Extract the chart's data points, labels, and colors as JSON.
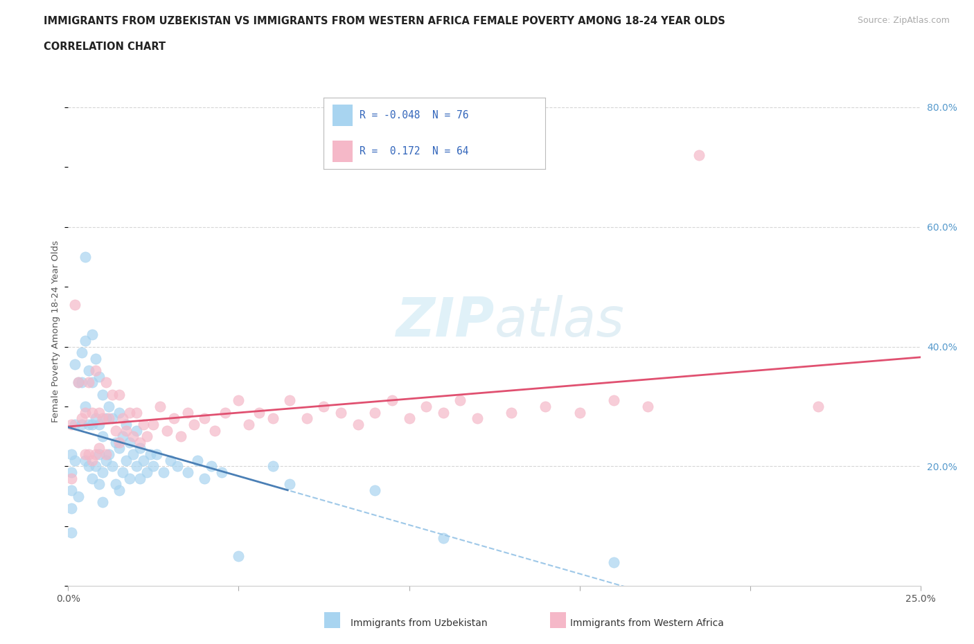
{
  "title_line1": "IMMIGRANTS FROM UZBEKISTAN VS IMMIGRANTS FROM WESTERN AFRICA FEMALE POVERTY AMONG 18-24 YEAR OLDS",
  "title_line2": "CORRELATION CHART",
  "source_text": "Source: ZipAtlas.com",
  "ylabel": "Female Poverty Among 18-24 Year Olds",
  "xlim": [
    0.0,
    0.25
  ],
  "ylim": [
    0.0,
    0.85
  ],
  "xticks": [
    0.0,
    0.05,
    0.1,
    0.15,
    0.2,
    0.25
  ],
  "xticklabels": [
    "0.0%",
    "",
    "",
    "",
    "",
    "25.0%"
  ],
  "yticks": [
    0.0,
    0.2,
    0.4,
    0.6,
    0.8
  ],
  "yticklabels": [
    "",
    "20.0%",
    "40.0%",
    "60.0%",
    "80.0%"
  ],
  "legend_R1": "-0.048",
  "legend_N1": "76",
  "legend_R2": "0.172",
  "legend_N2": "64",
  "color_uzbekistan": "#a8d4f0",
  "color_western_africa": "#f5b8c8",
  "trend_color_uzbekistan_solid": "#4a7fb5",
  "trend_color_uzbekistan_dash": "#9ec8e8",
  "trend_color_western_africa": "#e05070",
  "background_color": "#ffffff",
  "watermark_color": "#cce8f4",
  "uzbekistan_x": [
    0.001,
    0.001,
    0.001,
    0.001,
    0.001,
    0.002,
    0.002,
    0.002,
    0.003,
    0.003,
    0.004,
    0.004,
    0.004,
    0.005,
    0.005,
    0.005,
    0.005,
    0.006,
    0.006,
    0.006,
    0.007,
    0.007,
    0.007,
    0.007,
    0.008,
    0.008,
    0.008,
    0.009,
    0.009,
    0.009,
    0.009,
    0.01,
    0.01,
    0.01,
    0.01,
    0.011,
    0.011,
    0.012,
    0.012,
    0.013,
    0.013,
    0.014,
    0.014,
    0.015,
    0.015,
    0.015,
    0.016,
    0.016,
    0.017,
    0.017,
    0.018,
    0.018,
    0.019,
    0.02,
    0.02,
    0.021,
    0.021,
    0.022,
    0.023,
    0.024,
    0.025,
    0.026,
    0.028,
    0.03,
    0.032,
    0.035,
    0.038,
    0.04,
    0.042,
    0.045,
    0.05,
    0.06,
    0.065,
    0.09,
    0.11,
    0.16
  ],
  "uzbekistan_y": [
    0.22,
    0.19,
    0.16,
    0.13,
    0.09,
    0.37,
    0.27,
    0.21,
    0.34,
    0.15,
    0.39,
    0.34,
    0.27,
    0.55,
    0.41,
    0.3,
    0.21,
    0.36,
    0.27,
    0.2,
    0.42,
    0.34,
    0.27,
    0.18,
    0.38,
    0.28,
    0.2,
    0.35,
    0.27,
    0.22,
    0.17,
    0.32,
    0.25,
    0.19,
    0.14,
    0.28,
    0.21,
    0.3,
    0.22,
    0.28,
    0.2,
    0.24,
    0.17,
    0.29,
    0.23,
    0.16,
    0.25,
    0.19,
    0.27,
    0.21,
    0.24,
    0.18,
    0.22,
    0.26,
    0.2,
    0.23,
    0.18,
    0.21,
    0.19,
    0.22,
    0.2,
    0.22,
    0.19,
    0.21,
    0.2,
    0.19,
    0.21,
    0.18,
    0.2,
    0.19,
    0.05,
    0.2,
    0.17,
    0.16,
    0.08,
    0.04
  ],
  "western_africa_x": [
    0.001,
    0.001,
    0.002,
    0.003,
    0.004,
    0.005,
    0.005,
    0.006,
    0.006,
    0.007,
    0.007,
    0.008,
    0.008,
    0.009,
    0.009,
    0.01,
    0.011,
    0.011,
    0.012,
    0.013,
    0.014,
    0.015,
    0.015,
    0.016,
    0.017,
    0.018,
    0.019,
    0.02,
    0.021,
    0.022,
    0.023,
    0.025,
    0.027,
    0.029,
    0.031,
    0.033,
    0.035,
    0.037,
    0.04,
    0.043,
    0.046,
    0.05,
    0.053,
    0.056,
    0.06,
    0.065,
    0.07,
    0.075,
    0.08,
    0.085,
    0.09,
    0.095,
    0.1,
    0.105,
    0.11,
    0.115,
    0.12,
    0.13,
    0.14,
    0.15,
    0.16,
    0.17,
    0.185,
    0.22
  ],
  "western_africa_y": [
    0.27,
    0.18,
    0.47,
    0.34,
    0.28,
    0.29,
    0.22,
    0.34,
    0.22,
    0.29,
    0.21,
    0.36,
    0.22,
    0.29,
    0.23,
    0.28,
    0.22,
    0.34,
    0.28,
    0.32,
    0.26,
    0.32,
    0.24,
    0.28,
    0.26,
    0.29,
    0.25,
    0.29,
    0.24,
    0.27,
    0.25,
    0.27,
    0.3,
    0.26,
    0.28,
    0.25,
    0.29,
    0.27,
    0.28,
    0.26,
    0.29,
    0.31,
    0.27,
    0.29,
    0.28,
    0.31,
    0.28,
    0.3,
    0.29,
    0.27,
    0.29,
    0.31,
    0.28,
    0.3,
    0.29,
    0.31,
    0.28,
    0.29,
    0.3,
    0.29,
    0.31,
    0.3,
    0.72,
    0.3
  ]
}
